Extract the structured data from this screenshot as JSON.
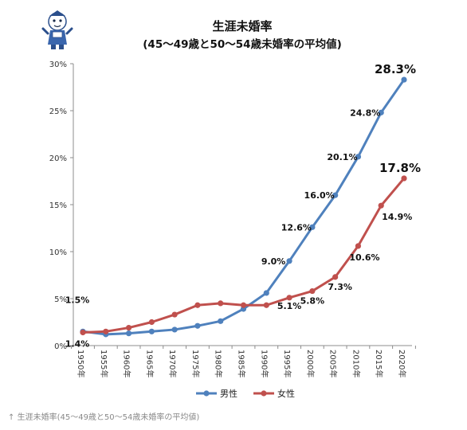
{
  "caption": {
    "arrow": "↑",
    "text": "生涯未婚率(45〜49歳と50〜54歳未婚率の平均値)"
  },
  "chart_data": {
    "type": "line",
    "title": "生涯未婚率",
    "subtitle": "(45〜49歳と50〜54歳未婚率の平均値)",
    "categories": [
      "1950年",
      "1955年",
      "1960年",
      "1965年",
      "1970年",
      "1975年",
      "1980年",
      "1985年",
      "1990年",
      "1995年",
      "2000年",
      "2005年",
      "2010年",
      "2015年",
      "2020年"
    ],
    "ylim": [
      0,
      30
    ],
    "yticks": [
      "0%",
      "5%",
      "10%",
      "15%",
      "20%",
      "25%",
      "30%"
    ],
    "grid": false,
    "legend_position": "bottom",
    "series": [
      {
        "name": "男性",
        "color": "#4f81bd",
        "values": [
          1.5,
          1.2,
          1.3,
          1.5,
          1.7,
          2.1,
          2.6,
          3.9,
          5.6,
          9.0,
          12.6,
          16.0,
          20.1,
          24.8,
          28.3
        ]
      },
      {
        "name": "女性",
        "color": "#c0504d",
        "values": [
          1.4,
          1.5,
          1.9,
          2.5,
          3.3,
          4.3,
          4.5,
          4.3,
          4.3,
          5.1,
          5.8,
          7.3,
          10.6,
          14.9,
          17.8
        ]
      }
    ],
    "annotations": [
      {
        "series": 0,
        "index": 0,
        "text": "1.5%",
        "size": "normal"
      },
      {
        "series": 1,
        "index": 0,
        "text": "1.4%",
        "size": "normal"
      },
      {
        "series": 0,
        "index": 9,
        "text": "9.0%",
        "size": "normal"
      },
      {
        "series": 0,
        "index": 10,
        "text": "12.6%",
        "size": "normal"
      },
      {
        "series": 0,
        "index": 11,
        "text": "16.0%",
        "size": "normal"
      },
      {
        "series": 0,
        "index": 12,
        "text": "20.1%",
        "size": "normal"
      },
      {
        "series": 0,
        "index": 13,
        "text": "24.8%",
        "size": "normal"
      },
      {
        "series": 0,
        "index": 14,
        "text": "28.3%",
        "size": "large"
      },
      {
        "series": 1,
        "index": 9,
        "text": "5.1%",
        "size": "normal"
      },
      {
        "series": 1,
        "index": 10,
        "text": "5.8%",
        "size": "normal"
      },
      {
        "series": 1,
        "index": 11,
        "text": "7.3%",
        "size": "normal"
      },
      {
        "series": 1,
        "index": 12,
        "text": "10.6%",
        "size": "normal"
      },
      {
        "series": 1,
        "index": 13,
        "text": "14.9%",
        "size": "normal"
      },
      {
        "series": 1,
        "index": 14,
        "text": "17.8%",
        "size": "large"
      }
    ]
  }
}
